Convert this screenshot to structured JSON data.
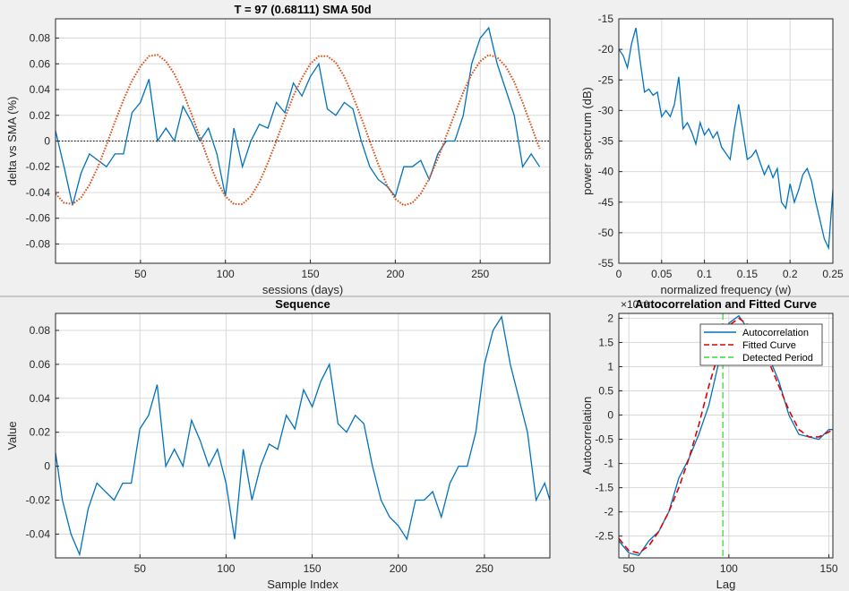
{
  "colors": {
    "series": "#0072bd",
    "sine": "#d95319",
    "fit": "#e00000",
    "period": "#33dd33",
    "axis": "#262626",
    "grid": "#d8d8d8"
  },
  "chart_data": [
    {
      "id": "price-delta",
      "type": "line",
      "title": "T = 97 (0.68111)      SMA 50d",
      "xlabel": "sessions (days)",
      "ylabel": "delta vs SMA (%)",
      "xlim": [
        0,
        291
      ],
      "ylim": [
        -0.095,
        0.095
      ],
      "xticks": [
        50,
        100,
        150,
        200,
        250
      ],
      "yticks": [
        -0.08,
        -0.06,
        -0.04,
        -0.02,
        0,
        0.02,
        0.04,
        0.06,
        0.08
      ],
      "ytick_labels": [
        "-0.08",
        "-0.06",
        "-0.04",
        "-0.02",
        "0",
        "0.02",
        "0.04",
        "0.06",
        "0.08"
      ],
      "grid": true,
      "series": [
        {
          "name": "delta",
          "x": [
            0,
            5,
            10,
            15,
            20,
            25,
            30,
            35,
            40,
            45,
            50,
            55,
            60,
            65,
            70,
            75,
            80,
            85,
            90,
            95,
            100,
            105,
            110,
            115,
            120,
            125,
            130,
            135,
            140,
            145,
            150,
            155,
            160,
            165,
            170,
            175,
            180,
            185,
            190,
            195,
            200,
            205,
            210,
            215,
            220,
            225,
            230,
            235,
            240,
            245,
            250,
            255,
            260,
            265,
            270,
            275,
            280,
            285
          ],
          "y": [
            0.008,
            -0.02,
            -0.05,
            -0.025,
            -0.01,
            -0.015,
            -0.02,
            -0.01,
            -0.01,
            0.022,
            0.03,
            0.048,
            0.0,
            0.01,
            0.0,
            0.027,
            0.015,
            0.0,
            0.01,
            -0.01,
            -0.043,
            0.01,
            -0.02,
            0.0,
            0.013,
            0.01,
            0.03,
            0.022,
            0.045,
            0.035,
            0.05,
            0.06,
            0.025,
            0.02,
            0.03,
            0.025,
            0.0,
            -0.02,
            -0.03,
            -0.035,
            -0.043,
            -0.02,
            -0.02,
            -0.015,
            -0.03,
            -0.01,
            0.0,
            0.0,
            0.02,
            0.06,
            0.08,
            0.088,
            0.06,
            0.04,
            0.02,
            -0.02,
            -0.01,
            -0.02
          ]
        },
        {
          "name": "sine",
          "style": "dotted",
          "x": [
            0,
            5,
            10,
            15,
            20,
            25,
            30,
            35,
            40,
            45,
            50,
            55,
            60,
            65,
            70,
            75,
            80,
            85,
            90,
            95,
            100,
            105,
            110,
            115,
            120,
            125,
            130,
            135,
            140,
            145,
            150,
            155,
            160,
            165,
            170,
            175,
            180,
            185,
            190,
            195,
            200,
            205,
            210,
            215,
            220,
            225,
            230,
            235,
            240,
            245,
            250,
            255,
            260,
            265,
            270,
            275,
            280,
            285
          ],
          "y": [
            -0.041,
            -0.048,
            -0.049,
            -0.044,
            -0.034,
            -0.02,
            -0.003,
            0.015,
            0.032,
            0.047,
            0.058,
            0.066,
            0.067,
            0.062,
            0.052,
            0.038,
            0.021,
            0.003,
            -0.015,
            -0.031,
            -0.043,
            -0.049,
            -0.049,
            -0.043,
            -0.032,
            -0.017,
            0.0,
            0.018,
            0.035,
            0.049,
            0.06,
            0.066,
            0.066,
            0.061,
            0.05,
            0.035,
            0.018,
            -0.0,
            -0.018,
            -0.034,
            -0.045,
            -0.05,
            -0.048,
            -0.041,
            -0.029,
            -0.014,
            0.004,
            0.021,
            0.038,
            0.052,
            0.062,
            0.067,
            0.065,
            0.058,
            0.046,
            0.03,
            0.012,
            -0.006
          ]
        }
      ],
      "reference_line": 0
    },
    {
      "id": "power-spectrum",
      "type": "line",
      "title": "",
      "xlabel": "normalized frequency (w)",
      "ylabel": "power spectrum (dB)",
      "xlim": [
        0,
        0.25
      ],
      "ylim": [
        -55,
        -15
      ],
      "xticks": [
        0,
        0.05,
        0.1,
        0.15,
        0.2,
        0.25
      ],
      "xtick_labels": [
        "0",
        "0.05",
        "0.1",
        "0.15",
        "0.2",
        "0.25"
      ],
      "yticks": [
        -55,
        -50,
        -45,
        -40,
        -35,
        -30,
        -25,
        -20,
        -15
      ],
      "ytick_labels": [
        "-55",
        "-50",
        "-45",
        "-40",
        "-35",
        "-30",
        "-25",
        "-20",
        "-15"
      ],
      "grid": true,
      "series": [
        {
          "name": "spectrum",
          "x": [
            0,
            0.005,
            0.01,
            0.015,
            0.02,
            0.025,
            0.03,
            0.035,
            0.04,
            0.045,
            0.05,
            0.055,
            0.06,
            0.065,
            0.07,
            0.075,
            0.08,
            0.085,
            0.09,
            0.095,
            0.1,
            0.105,
            0.11,
            0.115,
            0.12,
            0.125,
            0.13,
            0.135,
            0.14,
            0.145,
            0.15,
            0.155,
            0.16,
            0.165,
            0.17,
            0.175,
            0.18,
            0.185,
            0.19,
            0.195,
            0.2,
            0.205,
            0.21,
            0.215,
            0.22,
            0.225,
            0.23,
            0.235,
            0.24,
            0.245,
            0.25
          ],
          "y": [
            -20,
            -21,
            -23,
            -19,
            -16.5,
            -22,
            -27,
            -26.5,
            -27.5,
            -27,
            -31,
            -30,
            -31,
            -29,
            -24.5,
            -33,
            -32,
            -33.5,
            -35.5,
            -32,
            -34,
            -33,
            -34.5,
            -33.5,
            -36,
            -37,
            -38,
            -33,
            -29,
            -33.5,
            -38,
            -37.5,
            -36.5,
            -38.5,
            -40.5,
            -39,
            -41,
            -39.5,
            -45,
            -46,
            -42,
            -45,
            -43,
            -40.5,
            -39.5,
            -41.5,
            -45,
            -48,
            -51,
            -52.5,
            -43
          ]
        }
      ]
    },
    {
      "id": "sequence",
      "type": "line",
      "title": "Sequence",
      "xlabel": "Sample Index",
      "ylabel": "Value",
      "xlim": [
        1,
        288
      ],
      "ylim": [
        -0.054,
        0.09
      ],
      "xticks": [
        50,
        100,
        150,
        200,
        250
      ],
      "yticks": [
        -0.04,
        -0.02,
        0,
        0.02,
        0.04,
        0.06,
        0.08
      ],
      "ytick_labels": [
        "-0.04",
        "-0.02",
        "0",
        "0.02",
        "0.04",
        "0.06",
        "0.08"
      ],
      "grid": true,
      "series": [
        {
          "name": "value",
          "x": [
            1,
            5,
            10,
            15,
            20,
            25,
            30,
            35,
            40,
            45,
            50,
            55,
            60,
            65,
            70,
            75,
            80,
            85,
            90,
            95,
            100,
            105,
            110,
            115,
            120,
            125,
            130,
            135,
            140,
            145,
            150,
            155,
            160,
            165,
            170,
            175,
            180,
            185,
            190,
            195,
            200,
            205,
            210,
            215,
            220,
            225,
            230,
            235,
            240,
            245,
            250,
            255,
            260,
            265,
            270,
            275,
            280,
            285,
            288
          ],
          "y": [
            0.008,
            -0.02,
            -0.04,
            -0.052,
            -0.025,
            -0.01,
            -0.015,
            -0.02,
            -0.01,
            -0.01,
            0.022,
            0.03,
            0.048,
            0.0,
            0.01,
            0.0,
            0.027,
            0.015,
            0.0,
            0.01,
            -0.01,
            -0.043,
            0.01,
            -0.02,
            0.0,
            0.013,
            0.01,
            0.03,
            0.022,
            0.045,
            0.035,
            0.05,
            0.06,
            0.025,
            0.02,
            0.03,
            0.025,
            0.0,
            -0.02,
            -0.03,
            -0.035,
            -0.043,
            -0.02,
            -0.02,
            -0.015,
            -0.03,
            -0.01,
            0.0,
            0.0,
            0.02,
            0.06,
            0.08,
            0.088,
            0.06,
            0.04,
            0.02,
            -0.02,
            -0.01,
            -0.02
          ]
        }
      ]
    },
    {
      "id": "autocorrelation",
      "type": "line",
      "title": "Autocorrelation and Fitted Curve",
      "axis_exponent": "×10⁻³",
      "xlabel": "Lag",
      "ylabel": "Autocorrelation",
      "xlim": [
        45,
        152
      ],
      "ylim": [
        -2.95,
        2.1
      ],
      "xticks": [
        50,
        100,
        150
      ],
      "yticks": [
        -2.5,
        -2,
        -1.5,
        -1,
        -0.5,
        0,
        0.5,
        1,
        1.5,
        2
      ],
      "ytick_labels": [
        "-2.5",
        "-2",
        "-1.5",
        "-1",
        "-0.5",
        "0",
        "0.5",
        "1",
        "1.5",
        "2"
      ],
      "grid": true,
      "legend": {
        "position": "top-right",
        "entries": [
          "Autocorrelation",
          "Fitted Curve",
          "Detected Period"
        ]
      },
      "detected_period": 97,
      "series": [
        {
          "name": "Autocorrelation",
          "x": [
            45,
            50,
            55,
            60,
            65,
            70,
            75,
            80,
            85,
            90,
            95,
            100,
            105,
            110,
            115,
            120,
            125,
            130,
            135,
            140,
            145,
            150,
            152
          ],
          "y": [
            -2.6,
            -2.85,
            -2.9,
            -2.6,
            -2.4,
            -2.0,
            -1.3,
            -0.9,
            -0.4,
            0.2,
            1.1,
            1.9,
            2.05,
            1.75,
            1.5,
            1.2,
            0.7,
            0.0,
            -0.4,
            -0.45,
            -0.5,
            -0.3,
            -0.3
          ]
        },
        {
          "name": "Fitted Curve",
          "style": "dashed",
          "x": [
            45,
            50,
            55,
            60,
            65,
            70,
            75,
            80,
            85,
            90,
            95,
            100,
            105,
            110,
            115,
            120,
            125,
            130,
            135,
            140,
            145,
            150,
            152
          ],
          "y": [
            -2.55,
            -2.8,
            -2.85,
            -2.7,
            -2.4,
            -2.0,
            -1.5,
            -0.9,
            -0.2,
            0.6,
            1.3,
            1.85,
            2.0,
            1.85,
            1.5,
            1.1,
            0.6,
            0.1,
            -0.3,
            -0.45,
            -0.45,
            -0.35,
            -0.3
          ]
        }
      ]
    }
  ]
}
